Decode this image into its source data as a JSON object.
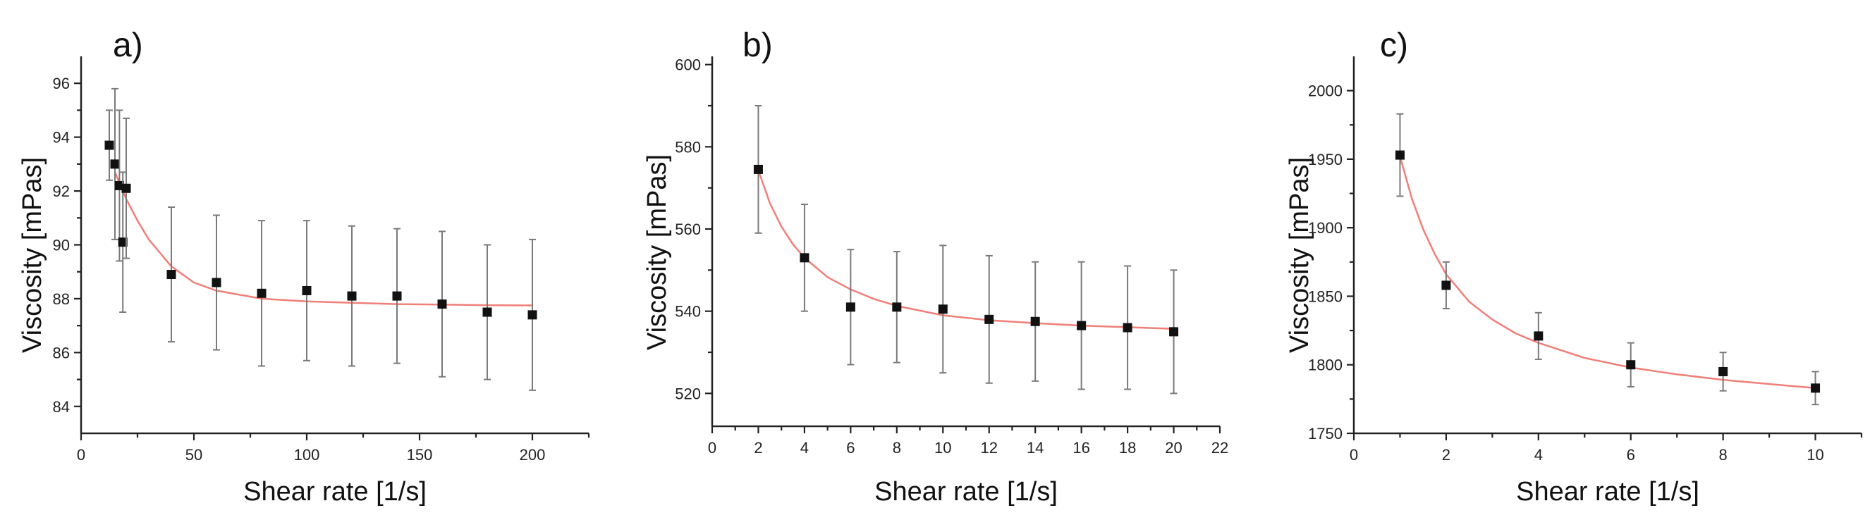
{
  "chart_data": [
    {
      "type": "scatter",
      "panel_label": "a)",
      "title": "",
      "xlabel": "Shear rate [1/s]",
      "ylabel": "Viscosity [mPas]",
      "xlim": [
        0,
        225
      ],
      "ylim": [
        83,
        97
      ],
      "xticks": [
        0,
        50,
        100,
        150,
        200
      ],
      "yticks": [
        84,
        86,
        88,
        90,
        92,
        94,
        96
      ],
      "grid": false,
      "legend": false,
      "series": [
        {
          "name": "Measured viscosity",
          "marker": "square",
          "x": [
            12.5,
            15,
            17,
            18.5,
            20,
            40,
            60,
            80,
            100,
            120,
            140,
            160,
            180,
            200
          ],
          "y": [
            93.7,
            93.0,
            92.2,
            90.1,
            92.1,
            88.9,
            88.6,
            88.2,
            88.3,
            88.1,
            88.1,
            87.8,
            87.5,
            87.4
          ],
          "yerr": [
            1.3,
            2.8,
            2.8,
            2.6,
            2.6,
            2.5,
            2.5,
            2.7,
            2.6,
            2.6,
            2.5,
            2.7,
            2.5,
            2.8
          ]
        }
      ],
      "fit_line": {
        "name": "Fit",
        "x": [
          15,
          20,
          25,
          30,
          35,
          40,
          50,
          60,
          80,
          100,
          120,
          140,
          160,
          180,
          200
        ],
        "y": [
          92.7,
          91.7,
          90.9,
          90.2,
          89.7,
          89.2,
          88.6,
          88.3,
          88.0,
          87.9,
          87.85,
          87.8,
          87.78,
          87.76,
          87.75
        ]
      },
      "colors": {
        "points": "#111111",
        "error_bars": "#7a7a7a",
        "fit_line": "#f07f78"
      }
    },
    {
      "type": "scatter",
      "panel_label": "b)",
      "title": "",
      "xlabel": "Shear rate [1/s]",
      "ylabel": "Viscosity [mPas]",
      "xlim": [
        0,
        22
      ],
      "ylim": [
        512,
        602
      ],
      "xticks": [
        0,
        2,
        4,
        6,
        8,
        10,
        12,
        14,
        16,
        18,
        20,
        22
      ],
      "yticks": [
        520,
        540,
        560,
        580,
        600
      ],
      "grid": false,
      "legend": false,
      "series": [
        {
          "name": "Measured viscosity",
          "marker": "square",
          "x": [
            2,
            4,
            6,
            8,
            10,
            12,
            14,
            16,
            18,
            20
          ],
          "y": [
            574.5,
            553,
            541,
            541,
            540.5,
            538,
            537.5,
            536.5,
            536,
            535
          ],
          "yerr": [
            15.5,
            13,
            14,
            13.5,
            15.5,
            15.5,
            14.5,
            15.5,
            15,
            15
          ]
        }
      ],
      "fit_line": {
        "name": "Fit",
        "x": [
          2,
          2.5,
          3,
          3.5,
          4,
          5,
          6,
          7,
          8,
          10,
          12,
          14,
          16,
          18,
          20
        ],
        "y": [
          574.3,
          566.3,
          560.6,
          556.3,
          553.0,
          548.3,
          545.3,
          543.0,
          541.3,
          539.0,
          537.8,
          537.1,
          536.5,
          536.1,
          535.7
        ]
      },
      "colors": {
        "points": "#111111",
        "error_bars": "#7a7a7a",
        "fit_line": "#f07f78"
      }
    },
    {
      "type": "scatter",
      "panel_label": "c)",
      "title": "",
      "xlabel": "Shear rate [1/s]",
      "ylabel": "Viscosity [mPas]",
      "xlim": [
        0,
        11
      ],
      "ylim": [
        1750,
        2025
      ],
      "xticks": [
        0,
        2,
        4,
        6,
        8,
        10
      ],
      "yticks": [
        1750,
        1800,
        1850,
        1900,
        1950,
        2000
      ],
      "grid": false,
      "legend": false,
      "series": [
        {
          "name": "Measured viscosity",
          "marker": "square",
          "x": [
            1,
            2,
            4,
            6,
            8,
            10
          ],
          "y": [
            1953,
            1858,
            1821,
            1800,
            1795,
            1783
          ],
          "yerr": [
            30,
            17,
            17,
            16,
            14,
            12
          ]
        }
      ],
      "fit_line": {
        "name": "Fit",
        "x": [
          1,
          1.25,
          1.5,
          1.75,
          2,
          2.5,
          3,
          3.5,
          4,
          5,
          6,
          7,
          8,
          9,
          10
        ],
        "y": [
          1952.0,
          1922.0,
          1899.0,
          1881.0,
          1866.0,
          1846.0,
          1833.0,
          1823.0,
          1816.0,
          1805.0,
          1798.0,
          1793.0,
          1789.0,
          1786.0,
          1783.0
        ]
      },
      "colors": {
        "points": "#111111",
        "error_bars": "#7a7a7a",
        "fit_line": "#f07f78"
      }
    }
  ]
}
